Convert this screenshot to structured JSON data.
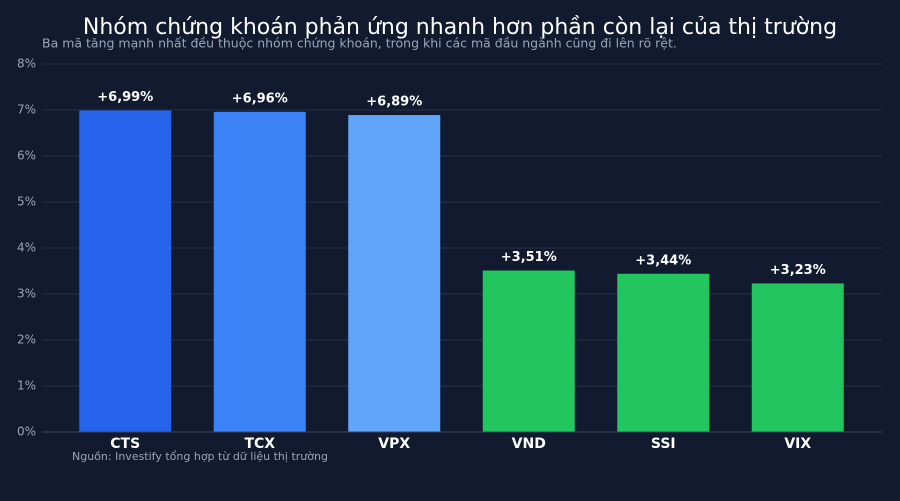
{
  "chart_data": {
    "type": "bar",
    "title": "Nhóm chứng khoán phản ứng nhanh hơn phần còn lại của thị trường",
    "subtitle": "Ba mã tăng mạnh nhất đều thuộc nhóm chứng khoán, trong khi các mã đầu ngành cũng đi lên rõ rệt.",
    "source": "Nguồn: Investify tổng hợp từ dữ liệu thị trường",
    "categories": [
      "CTS",
      "TCX",
      "VPX",
      "VND",
      "SSI",
      "VIX"
    ],
    "values": [
      6.99,
      6.96,
      6.89,
      3.51,
      3.44,
      3.23
    ],
    "value_labels": [
      "+6,99%",
      "+6,96%",
      "+6,89%",
      "+3,51%",
      "+3,44%",
      "+3,23%"
    ],
    "colors": [
      "#2563eb",
      "#3b82f6",
      "#60a5fa",
      "#22c55e",
      "#22c55e",
      "#22c55e"
    ],
    "ylim": [
      0,
      8
    ],
    "yticks": [
      {
        "value": 0,
        "label": "0%"
      },
      {
        "value": 1,
        "label": "1%"
      },
      {
        "value": 2,
        "label": "2%"
      },
      {
        "value": 3,
        "label": "3%"
      },
      {
        "value": 4,
        "label": "4%"
      },
      {
        "value": 5,
        "label": "5%"
      },
      {
        "value": 6,
        "label": "6%"
      },
      {
        "value": 7,
        "label": "7%"
      },
      {
        "value": 8,
        "label": "8%"
      }
    ],
    "grid": true
  }
}
